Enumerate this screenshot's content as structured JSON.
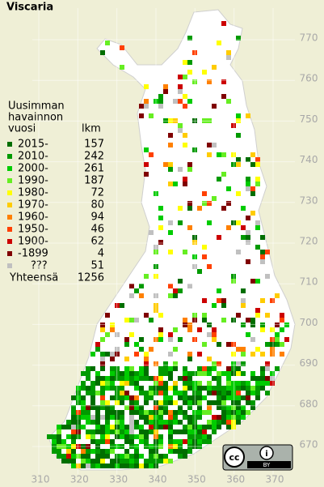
{
  "title": "Viscaria",
  "legend": {
    "heading": [
      "Uusimman",
      "havainnon",
      "vuosi"
    ],
    "count_heading": "lkm",
    "rows": [
      {
        "label": "2015-",
        "count": 157,
        "color": "#006e00"
      },
      {
        "label": "2010-",
        "count": 242,
        "color": "#009a00"
      },
      {
        "label": "2000-",
        "count": 261,
        "color": "#00cc00"
      },
      {
        "label": "1990-",
        "count": 187,
        "color": "#66ee22"
      },
      {
        "label": "1980-",
        "count": 72,
        "color": "#ffff00"
      },
      {
        "label": "1970-",
        "count": 80,
        "color": "#ffcc00"
      },
      {
        "label": "1960-",
        "count": 94,
        "color": "#ff8000"
      },
      {
        "label": "1950-",
        "count": 46,
        "color": "#ff4000"
      },
      {
        "label": "1900-",
        "count": 62,
        "color": "#cc0000"
      },
      {
        "label": "-1899",
        "count": 4,
        "color": "#800000"
      },
      {
        "label": "???",
        "count": 51,
        "color": "#c0c0c0"
      }
    ],
    "total": {
      "label": "Yhteensä",
      "value": 1256
    }
  },
  "grid": {
    "x_ticks": [
      310,
      320,
      330,
      340,
      350,
      360,
      370
    ],
    "y_ticks": [
      670,
      680,
      690,
      700,
      710,
      720,
      730,
      740,
      750,
      760,
      770
    ]
  },
  "license": {
    "icon": "cc",
    "label": "BY"
  }
}
